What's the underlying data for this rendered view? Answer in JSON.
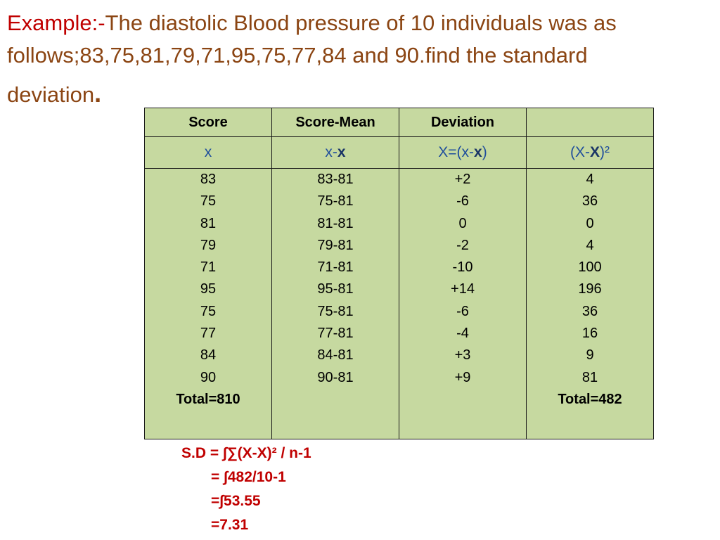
{
  "title": {
    "lead": "Example:-",
    "line1": "The diastolic Blood pressure of 10 individuals was as",
    "line2": "follows;83,75,81,79,71,95,75,77,84 and 90.find the standard",
    "line3": "deviation",
    "line3_end": "."
  },
  "table": {
    "headers": [
      "Score",
      "Score-Mean",
      "Deviation",
      ""
    ],
    "symbols": {
      "c1": "x",
      "c2_pre": "x-",
      "c2_bold": "x",
      "c3_pre": "X=(x-",
      "c3_bold": "x",
      "c3_post": ")",
      "c4_pre": "(X-",
      "c4_bold": "X",
      "c4_post": ")²"
    },
    "scores": [
      "83",
      "75",
      "81",
      "79",
      "71",
      "95",
      "75",
      "77",
      "84",
      "90"
    ],
    "score_minus_mean": [
      "83-81",
      "75-81",
      "81-81",
      "79-81",
      "71-81",
      "95-81",
      "75-81",
      "77-81",
      "84-81",
      "90-81"
    ],
    "deviations": [
      "+2",
      "-6",
      "0",
      "-2",
      "-10",
      "+14",
      "-6",
      "-4",
      "+3",
      "+9"
    ],
    "squared": [
      "4",
      "36",
      "0",
      "4",
      "100",
      "196",
      "36",
      "16",
      "9",
      "81"
    ],
    "total_score": "Total=810",
    "total_squared": "Total=482"
  },
  "formula": {
    "line1": "S.D = ∫∑(X-X)² / n-1",
    "line2": "= ∫482/10-1",
    "line3": "=∫53.55",
    "line4": "=7.31"
  },
  "colors": {
    "title_lead": "#C00000",
    "title_text": "#8B4513",
    "table_fill": "#C6D9A0",
    "symbol_text": "#1F4E9C",
    "formula_text": "#C00000"
  }
}
